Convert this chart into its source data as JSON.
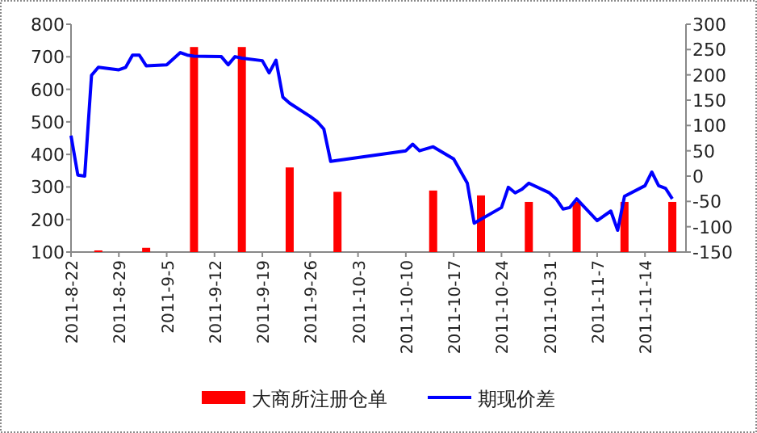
{
  "chart_data": {
    "type": "bar",
    "xlim": [
      "2011-08-22",
      "2011-11-20"
    ],
    "xticks": [
      {
        "value": "2011-08-22",
        "label": "2011-8-22"
      },
      {
        "value": "2011-08-29",
        "label": "2011-8-29"
      },
      {
        "value": "2011-09-05",
        "label": "2011-9-5"
      },
      {
        "value": "2011-09-12",
        "label": "2011-9-12"
      },
      {
        "value": "2011-09-19",
        "label": "2011-9-19"
      },
      {
        "value": "2011-09-26",
        "label": "2011-9-26"
      },
      {
        "value": "2011-10-03",
        "label": "2011-10-3"
      },
      {
        "value": "2011-10-10",
        "label": "2011-10-10"
      },
      {
        "value": "2011-10-17",
        "label": "2011-10-17"
      },
      {
        "value": "2011-10-24",
        "label": "2011-10-24"
      },
      {
        "value": "2011-10-31",
        "label": "2011-10-31"
      },
      {
        "value": "2011-11-07",
        "label": "2011-11-7"
      },
      {
        "value": "2011-11-14",
        "label": "2011-11-14"
      }
    ],
    "ylim": [
      100,
      800
    ],
    "yticks": [
      100,
      200,
      300,
      400,
      500,
      600,
      700,
      800
    ],
    "y2lim": [
      -150,
      300
    ],
    "y2ticks": [
      -150,
      -100,
      -50,
      0,
      50,
      100,
      150,
      200,
      250,
      300
    ],
    "legend": "bottom",
    "series": [
      {
        "name": "大商所注册仓单",
        "color": "#ff0000",
        "x": [
          "2011-08-26",
          "2011-09-02",
          "2011-09-09",
          "2011-09-16",
          "2011-09-23",
          "2011-09-30",
          "2011-10-14",
          "2011-10-21",
          "2011-10-28",
          "2011-11-04",
          "2011-11-11",
          "2011-11-18"
        ],
        "values": [
          105,
          113,
          730,
          730,
          360,
          285,
          289,
          274,
          254,
          254,
          254,
          254
        ]
      },
      {
        "name": "期现价差",
        "type": "line",
        "axis": "y2",
        "color": "#0000ff",
        "x": [
          "2011-08-22",
          "2011-08-23",
          "2011-08-24",
          "2011-08-25",
          "2011-08-26",
          "2011-08-29",
          "2011-08-30",
          "2011-08-31",
          "2011-09-01",
          "2011-09-02",
          "2011-09-05",
          "2011-09-07",
          "2011-09-08",
          "2011-09-09",
          "2011-09-13",
          "2011-09-14",
          "2011-09-15",
          "2011-09-16",
          "2011-09-19",
          "2011-09-20",
          "2011-09-21",
          "2011-09-22",
          "2011-09-23",
          "2011-09-26",
          "2011-09-27",
          "2011-09-28",
          "2011-09-29",
          "2011-10-10",
          "2011-10-11",
          "2011-10-12",
          "2011-10-14",
          "2011-10-17",
          "2011-10-19",
          "2011-10-20",
          "2011-10-24",
          "2011-10-25",
          "2011-10-26",
          "2011-10-27",
          "2011-10-28",
          "2011-10-31",
          "2011-11-01",
          "2011-11-02",
          "2011-11-03",
          "2011-11-04",
          "2011-11-07",
          "2011-11-09",
          "2011-11-10",
          "2011-11-11",
          "2011-11-14",
          "2011-11-15",
          "2011-11-16",
          "2011-11-17",
          "2011-11-18"
        ],
        "values": [
          80,
          2,
          0,
          199,
          215,
          210,
          215,
          239,
          239,
          218,
          220,
          244,
          239,
          237,
          236,
          220,
          236,
          233,
          228,
          204,
          229,
          156,
          144,
          118,
          108,
          93,
          29,
          50,
          63,
          50,
          58,
          34,
          -14,
          -93,
          -62,
          -22,
          -33,
          -26,
          -14,
          -33,
          -45,
          -65,
          -62,
          -45,
          -88,
          -69,
          -107,
          -40,
          -19,
          8,
          -19,
          -24,
          -45
        ]
      }
    ]
  }
}
